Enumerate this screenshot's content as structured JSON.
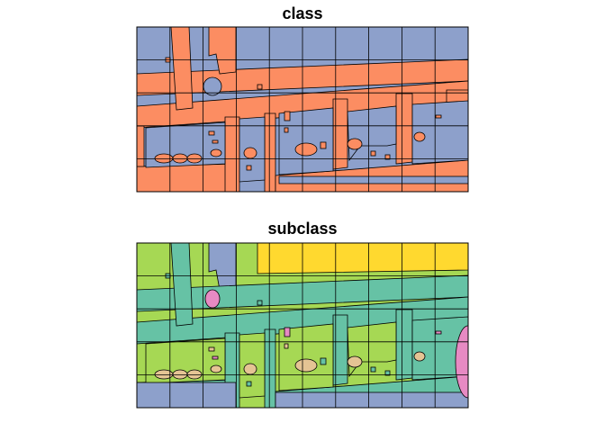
{
  "panels": [
    {
      "title": "class",
      "colors": {
        "a": "#8DA0CB",
        "b": "#FC8D62"
      }
    },
    {
      "title": "subclass",
      "colors": {
        "a": "#A6D854",
        "b": "#66C2A5",
        "c": "#8DA0CB",
        "d": "#FFD92F",
        "e": "#E78AC3",
        "f": "#E5C494"
      }
    }
  ],
  "grid": {
    "cols": 10,
    "rows": 5
  }
}
